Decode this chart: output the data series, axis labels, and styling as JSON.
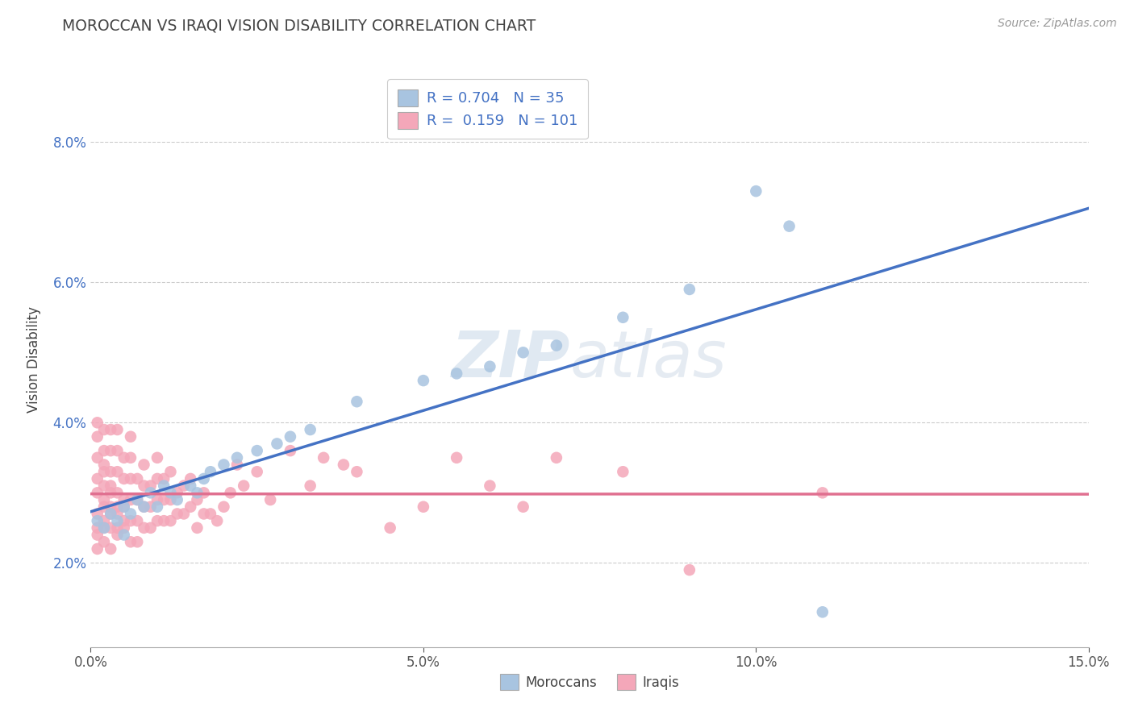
{
  "title": "MOROCCAN VS IRAQI VISION DISABILITY CORRELATION CHART",
  "source_text": "Source: ZipAtlas.com",
  "ylabel": "Vision Disability",
  "xlim": [
    0.0,
    0.15
  ],
  "ylim": [
    0.008,
    0.09
  ],
  "xticks": [
    0.0,
    0.05,
    0.1,
    0.15
  ],
  "xtick_labels": [
    "0.0%",
    "5.0%",
    "10.0%",
    "15.0%"
  ],
  "yticks": [
    0.02,
    0.04,
    0.06,
    0.08
  ],
  "ytick_labels": [
    "2.0%",
    "4.0%",
    "6.0%",
    "8.0%"
  ],
  "moroccan_color": "#a8c4e0",
  "iraqi_color": "#f4a7b9",
  "moroccan_line_color": "#4472c4",
  "iraqi_line_color": "#e07090",
  "moroccan_R": 0.704,
  "moroccan_N": 35,
  "iraqi_R": 0.159,
  "iraqi_N": 101,
  "background_color": "#ffffff",
  "grid_color": "#cccccc",
  "watermark": "ZIPatlas",
  "moroccan_points": [
    [
      0.001,
      0.026
    ],
    [
      0.002,
      0.025
    ],
    [
      0.003,
      0.027
    ],
    [
      0.004,
      0.026
    ],
    [
      0.005,
      0.028
    ],
    [
      0.005,
      0.024
    ],
    [
      0.006,
      0.027
    ],
    [
      0.007,
      0.029
    ],
    [
      0.008,
      0.028
    ],
    [
      0.009,
      0.03
    ],
    [
      0.01,
      0.028
    ],
    [
      0.011,
      0.031
    ],
    [
      0.012,
      0.03
    ],
    [
      0.013,
      0.029
    ],
    [
      0.015,
      0.031
    ],
    [
      0.016,
      0.03
    ],
    [
      0.017,
      0.032
    ],
    [
      0.018,
      0.033
    ],
    [
      0.02,
      0.034
    ],
    [
      0.022,
      0.035
    ],
    [
      0.025,
      0.036
    ],
    [
      0.028,
      0.037
    ],
    [
      0.03,
      0.038
    ],
    [
      0.033,
      0.039
    ],
    [
      0.04,
      0.043
    ],
    [
      0.05,
      0.046
    ],
    [
      0.055,
      0.047
    ],
    [
      0.06,
      0.048
    ],
    [
      0.065,
      0.05
    ],
    [
      0.07,
      0.051
    ],
    [
      0.08,
      0.055
    ],
    [
      0.09,
      0.059
    ],
    [
      0.1,
      0.073
    ],
    [
      0.105,
      0.068
    ],
    [
      0.11,
      0.013
    ]
  ],
  "iraqi_points": [
    [
      0.001,
      0.025
    ],
    [
      0.001,
      0.03
    ],
    [
      0.001,
      0.035
    ],
    [
      0.001,
      0.04
    ],
    [
      0.001,
      0.022
    ],
    [
      0.001,
      0.027
    ],
    [
      0.001,
      0.024
    ],
    [
      0.001,
      0.032
    ],
    [
      0.001,
      0.038
    ],
    [
      0.002,
      0.026
    ],
    [
      0.002,
      0.029
    ],
    [
      0.002,
      0.033
    ],
    [
      0.002,
      0.036
    ],
    [
      0.002,
      0.039
    ],
    [
      0.002,
      0.023
    ],
    [
      0.002,
      0.025
    ],
    [
      0.002,
      0.028
    ],
    [
      0.002,
      0.031
    ],
    [
      0.002,
      0.034
    ],
    [
      0.003,
      0.025
    ],
    [
      0.003,
      0.028
    ],
    [
      0.003,
      0.03
    ],
    [
      0.003,
      0.033
    ],
    [
      0.003,
      0.036
    ],
    [
      0.003,
      0.039
    ],
    [
      0.003,
      0.022
    ],
    [
      0.003,
      0.027
    ],
    [
      0.003,
      0.031
    ],
    [
      0.004,
      0.025
    ],
    [
      0.004,
      0.028
    ],
    [
      0.004,
      0.03
    ],
    [
      0.004,
      0.033
    ],
    [
      0.004,
      0.036
    ],
    [
      0.004,
      0.039
    ],
    [
      0.004,
      0.024
    ],
    [
      0.004,
      0.027
    ],
    [
      0.005,
      0.026
    ],
    [
      0.005,
      0.029
    ],
    [
      0.005,
      0.032
    ],
    [
      0.005,
      0.035
    ],
    [
      0.005,
      0.025
    ],
    [
      0.005,
      0.028
    ],
    [
      0.006,
      0.026
    ],
    [
      0.006,
      0.029
    ],
    [
      0.006,
      0.032
    ],
    [
      0.006,
      0.035
    ],
    [
      0.006,
      0.023
    ],
    [
      0.006,
      0.038
    ],
    [
      0.007,
      0.026
    ],
    [
      0.007,
      0.029
    ],
    [
      0.007,
      0.032
    ],
    [
      0.007,
      0.023
    ],
    [
      0.008,
      0.025
    ],
    [
      0.008,
      0.028
    ],
    [
      0.008,
      0.031
    ],
    [
      0.008,
      0.034
    ],
    [
      0.009,
      0.025
    ],
    [
      0.009,
      0.028
    ],
    [
      0.009,
      0.031
    ],
    [
      0.01,
      0.026
    ],
    [
      0.01,
      0.029
    ],
    [
      0.01,
      0.032
    ],
    [
      0.01,
      0.035
    ],
    [
      0.011,
      0.026
    ],
    [
      0.011,
      0.029
    ],
    [
      0.011,
      0.032
    ],
    [
      0.012,
      0.026
    ],
    [
      0.012,
      0.029
    ],
    [
      0.012,
      0.033
    ],
    [
      0.013,
      0.027
    ],
    [
      0.013,
      0.03
    ],
    [
      0.014,
      0.027
    ],
    [
      0.014,
      0.031
    ],
    [
      0.015,
      0.028
    ],
    [
      0.015,
      0.032
    ],
    [
      0.016,
      0.025
    ],
    [
      0.016,
      0.029
    ],
    [
      0.017,
      0.027
    ],
    [
      0.017,
      0.03
    ],
    [
      0.018,
      0.027
    ],
    [
      0.019,
      0.026
    ],
    [
      0.02,
      0.028
    ],
    [
      0.021,
      0.03
    ],
    [
      0.022,
      0.034
    ],
    [
      0.023,
      0.031
    ],
    [
      0.025,
      0.033
    ],
    [
      0.027,
      0.029
    ],
    [
      0.03,
      0.036
    ],
    [
      0.033,
      0.031
    ],
    [
      0.035,
      0.035
    ],
    [
      0.038,
      0.034
    ],
    [
      0.04,
      0.033
    ],
    [
      0.045,
      0.025
    ],
    [
      0.05,
      0.028
    ],
    [
      0.055,
      0.035
    ],
    [
      0.06,
      0.031
    ],
    [
      0.065,
      0.028
    ],
    [
      0.07,
      0.035
    ],
    [
      0.08,
      0.033
    ],
    [
      0.09,
      0.019
    ],
    [
      0.11,
      0.03
    ]
  ]
}
